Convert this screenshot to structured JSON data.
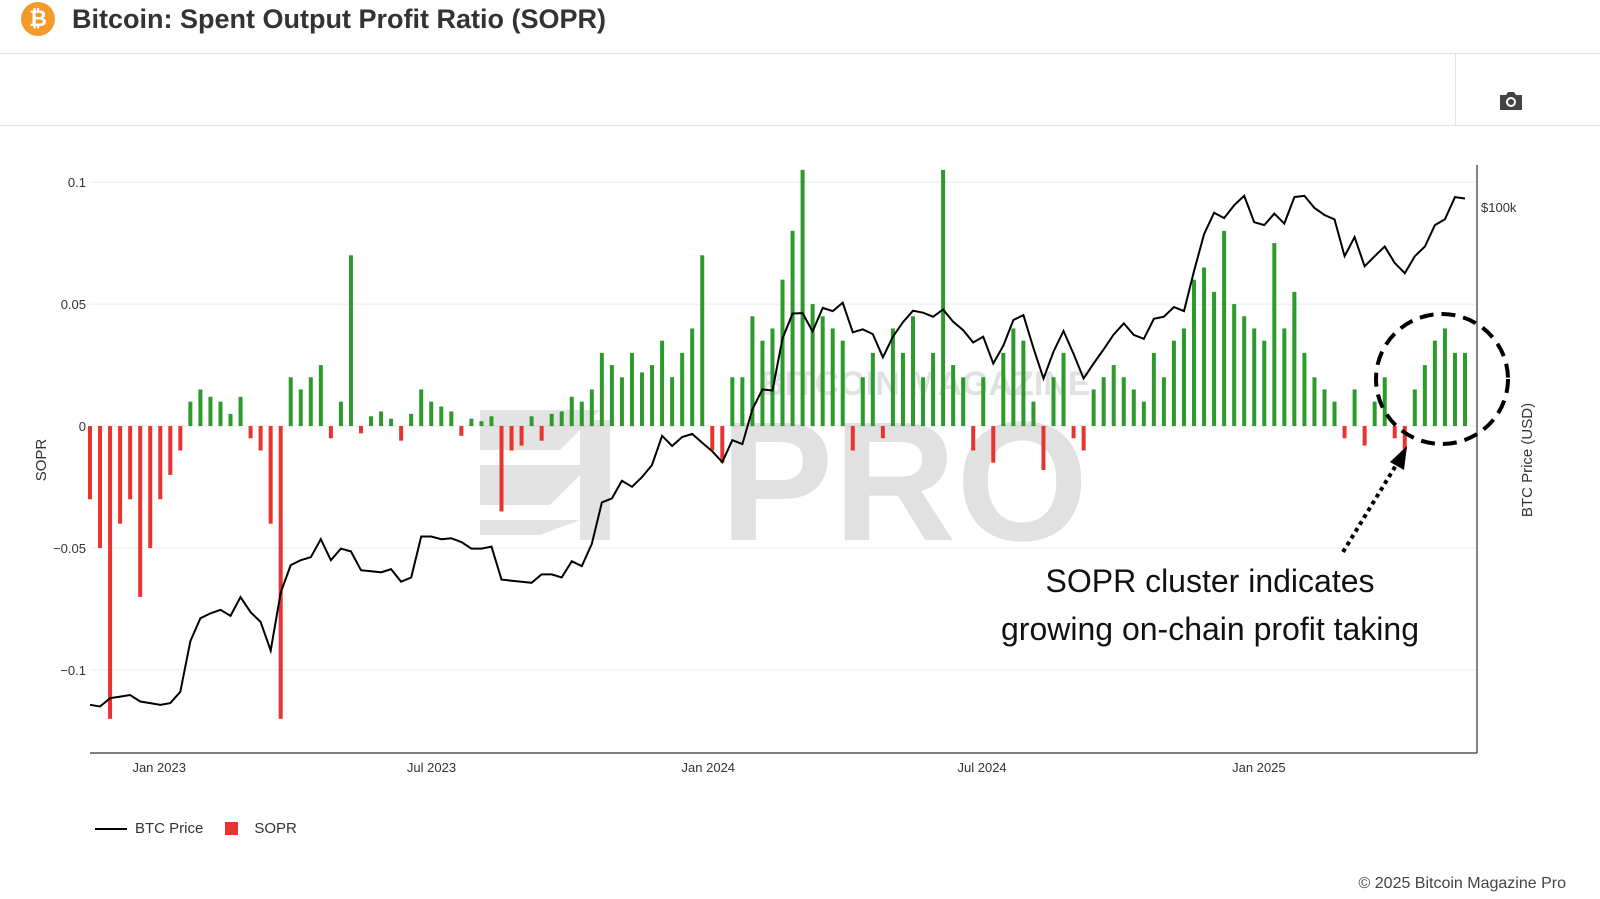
{
  "header": {
    "title": "Bitcoin: Spent Output Profit Ratio (SOPR)",
    "icon": "bitcoin-logo",
    "icon_glyph": "₿"
  },
  "toolbar": {
    "icon": "camera-icon"
  },
  "watermark": {
    "top": "BITCOIN MAGAZINE",
    "main": "PRO"
  },
  "legend": [
    {
      "label": "BTC Price",
      "color": "#000000"
    },
    {
      "label": "SOPR",
      "color": "#e8332f"
    }
  ],
  "annotation": {
    "line1": "SOPR cluster indicates",
    "line2": "growing on-chain profit taking"
  },
  "footer": {
    "copyright": "© 2025 Bitcoin Magazine Pro"
  },
  "colors": {
    "positive": "#2e9a2e",
    "negative": "#e8332f",
    "price": "#000000"
  },
  "chart_data": {
    "type": "bar+line",
    "title": "Bitcoin: Spent Output Profit Ratio (SOPR)",
    "xlabel": "",
    "ylabel": "SOPR",
    "y2label": "BTC Price (USD)",
    "ylim": [
      -0.134,
      0.107
    ],
    "yticks": [
      {
        "v": 0.1,
        "label": "0.1"
      },
      {
        "v": 0.05,
        "label": "0.05"
      },
      {
        "v": 0,
        "label": "0"
      },
      {
        "v": -0.05,
        "label": "−0.05"
      },
      {
        "v": -0.1,
        "label": "−0.1"
      }
    ],
    "y2_scale": "log",
    "y2ticks": [
      {
        "v": 100000,
        "label": "$100k"
      }
    ],
    "xticks": [
      {
        "date": "2023-01-01",
        "label": "Jan 2023"
      },
      {
        "date": "2023-07-01",
        "label": "Jul 2023"
      },
      {
        "date": "2024-01-01",
        "label": "Jan 2024"
      },
      {
        "date": "2024-07-01",
        "label": "Jul 2024"
      },
      {
        "date": "2025-01-01",
        "label": "Jan 2025"
      }
    ],
    "x_start": "2022-11-16",
    "x_end": "2025-05-18",
    "sampling": "weekly",
    "btc_price_k": [
      16.6,
      16.5,
      17.0,
      17.1,
      17.2,
      16.8,
      16.7,
      16.6,
      16.7,
      17.4,
      20.9,
      22.7,
      23.1,
      23.4,
      22.9,
      24.5,
      23.2,
      22.4,
      20.2,
      24.9,
      27.5,
      28.0,
      28.3,
      30.2,
      28.0,
      29.2,
      28.9,
      27.0,
      26.9,
      26.8,
      27.1,
      25.9,
      26.3,
      30.5,
      30.5,
      30.2,
      30.3,
      29.9,
      29.2,
      29.2,
      29.4,
      26.1,
      26.0,
      25.9,
      25.8,
      26.6,
      26.6,
      26.3,
      27.9,
      27.4,
      29.7,
      34.5,
      35.0,
      37.3,
      36.5,
      37.8,
      39.5,
      43.9,
      42.3,
      43.7,
      44.2,
      42.8,
      41.5,
      39.9,
      43.2,
      42.6,
      48.3,
      51.9,
      51.7,
      62.4,
      68.3,
      68.4,
      64.0,
      69.7,
      68.9,
      71.0,
      63.8,
      64.5,
      63.4,
      58.3,
      62.8,
      66.2,
      69.0,
      68.5,
      67.5,
      69.3,
      66.3,
      64.3,
      61.5,
      62.8,
      57.0,
      60.8,
      66.7,
      67.9,
      60.3,
      54.0,
      59.5,
      64.1,
      59.0,
      54.0,
      57.0,
      60.0,
      63.3,
      65.9,
      63.2,
      62.3,
      67.0,
      67.5,
      69.9,
      68.9,
      79.6,
      91.0,
      98.3,
      96.4,
      101.0,
      104.5,
      95.0,
      94.0,
      98.0,
      94.5,
      104.0,
      104.5,
      100.0,
      97.5,
      96.0,
      84.0,
      90.0,
      81.0,
      84.0,
      87.0,
      82.0,
      79.0,
      84.0,
      87.0,
      94.0,
      96.0,
      104.0,
      103.5
    ],
    "sopr": [
      -0.03,
      -0.05,
      -0.12,
      -0.04,
      -0.03,
      -0.07,
      -0.05,
      -0.03,
      -0.02,
      -0.01,
      0.01,
      0.015,
      0.012,
      0.01,
      0.005,
      0.012,
      -0.005,
      -0.01,
      -0.04,
      -0.12,
      0.02,
      0.015,
      0.02,
      0.025,
      -0.005,
      0.01,
      0.07,
      -0.003,
      0.004,
      0.006,
      0.003,
      -0.006,
      0.005,
      0.015,
      0.01,
      0.008,
      0.006,
      -0.004,
      0.003,
      0.002,
      0.004,
      -0.035,
      -0.01,
      -0.008,
      0.004,
      -0.006,
      0.005,
      0.006,
      0.012,
      0.01,
      0.015,
      0.03,
      0.025,
      0.02,
      0.03,
      0.022,
      0.025,
      0.035,
      0.02,
      0.03,
      0.04,
      0.07,
      -0.01,
      -0.015,
      0.02,
      0.02,
      0.045,
      0.035,
      0.04,
      0.06,
      0.08,
      0.105,
      0.05,
      0.045,
      0.04,
      0.035,
      -0.01,
      0.02,
      0.03,
      -0.005,
      0.04,
      0.03,
      0.045,
      0.02,
      0.03,
      0.105,
      0.025,
      0.02,
      -0.01,
      0.02,
      -0.015,
      0.03,
      0.04,
      0.035,
      0.01,
      -0.018,
      0.02,
      0.03,
      -0.005,
      -0.01,
      0.015,
      0.02,
      0.025,
      0.02,
      0.015,
      0.01,
      0.03,
      0.02,
      0.035,
      0.04,
      0.06,
      0.065,
      0.055,
      0.08,
      0.05,
      0.045,
      0.04,
      0.035,
      0.075,
      0.04,
      0.055,
      0.03,
      0.02,
      0.015,
      0.01,
      -0.005,
      0.015,
      -0.008,
      0.01,
      0.02,
      -0.005,
      -0.01,
      0.015,
      0.025,
      0.035,
      0.04,
      0.03,
      0.03
    ]
  }
}
